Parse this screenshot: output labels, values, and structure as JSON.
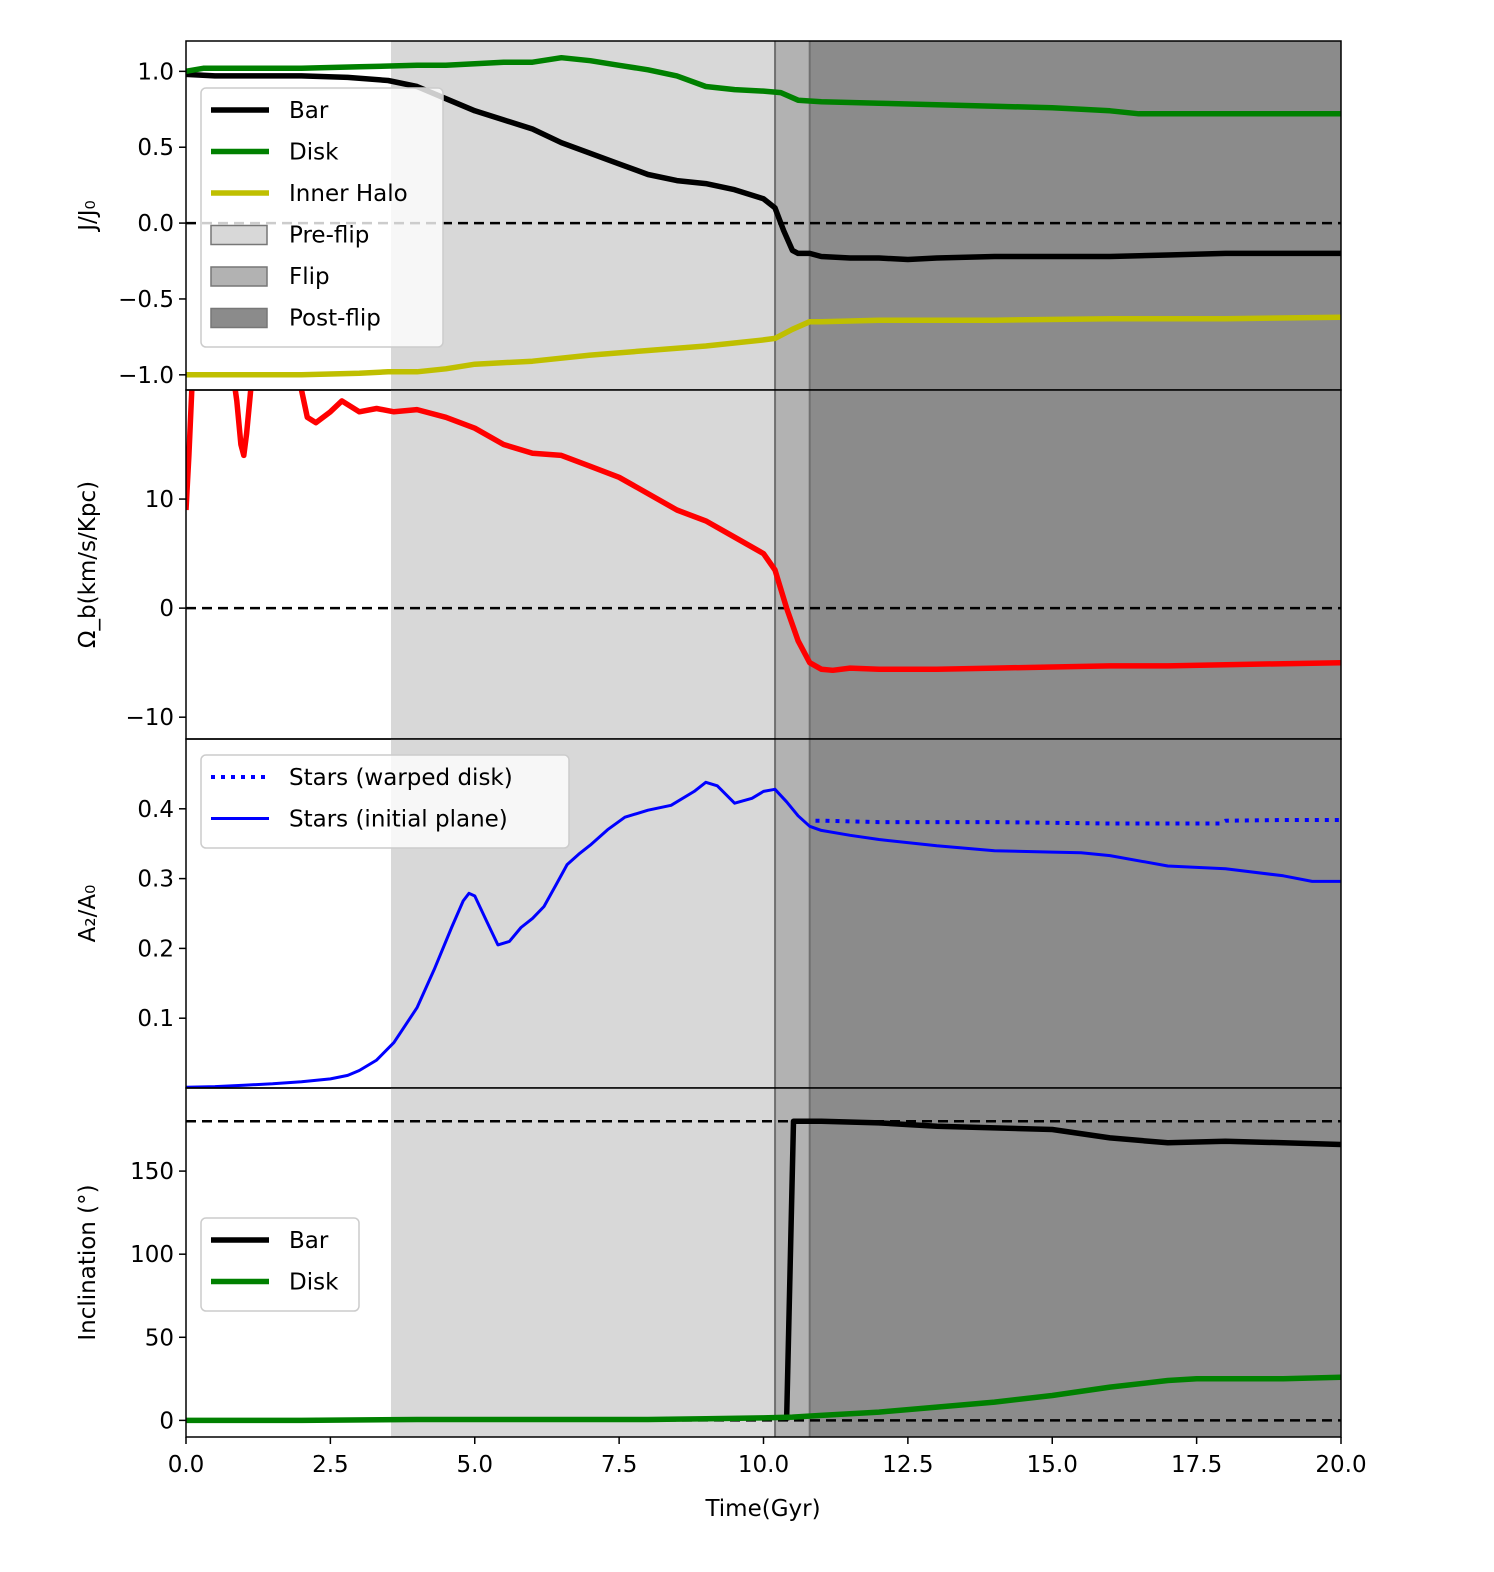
{
  "figure": {
    "xlabel": "Time(Gyr)",
    "x_ticks": [
      "0.0",
      "2.5",
      "5.0",
      "7.5",
      "10.0",
      "12.5",
      "15.0",
      "17.5",
      "20.0"
    ]
  },
  "phases": [
    {
      "name": "Pre-flip",
      "start": 3.55,
      "end": 10.2,
      "color": "#d8d8d8"
    },
    {
      "name": "Flip",
      "start": 10.2,
      "end": 10.8,
      "color": "#b2b2b2"
    },
    {
      "name": "Post-flip",
      "start": 10.8,
      "end": 20.0,
      "color": "#8b8b8b"
    }
  ],
  "chart_data": [
    {
      "type": "line",
      "ylabel": "J/J₀",
      "xlim": [
        0,
        20
      ],
      "ylim": [
        -1.1,
        1.2
      ],
      "y_ticks": [
        "1.0",
        "0.5",
        "0.0",
        "−0.5",
        "−1.0"
      ],
      "y_tick_values": [
        1.0,
        0.5,
        0.0,
        -0.5,
        -1.0
      ],
      "reference_lines": [
        0
      ],
      "legend": [
        "Bar",
        "Disk",
        "Inner Halo",
        "Pre-flip",
        "Flip",
        "Post-flip"
      ],
      "series": [
        {
          "name": "Bar",
          "color": "#000000",
          "x": [
            0,
            0.5,
            1,
            2,
            2.8,
            3.5,
            4,
            4.5,
            5,
            5.5,
            6,
            6.5,
            7,
            7.5,
            8,
            8.5,
            9,
            9.5,
            10,
            10.2,
            10.35,
            10.5,
            10.6,
            10.8,
            11,
            11.5,
            12,
            12.5,
            13,
            14,
            15,
            16,
            17,
            18,
            19,
            20
          ],
          "y": [
            0.98,
            0.97,
            0.97,
            0.97,
            0.96,
            0.94,
            0.9,
            0.82,
            0.74,
            0.68,
            0.62,
            0.53,
            0.46,
            0.39,
            0.32,
            0.28,
            0.26,
            0.22,
            0.16,
            0.1,
            -0.05,
            -0.18,
            -0.2,
            -0.2,
            -0.22,
            -0.23,
            -0.23,
            -0.24,
            -0.23,
            -0.22,
            -0.22,
            -0.22,
            -0.21,
            -0.2,
            -0.2,
            -0.2
          ]
        },
        {
          "name": "Disk",
          "color": "#008000",
          "x": [
            0,
            0.3,
            1,
            2,
            3,
            4,
            4.5,
            5,
            5.5,
            6,
            6.5,
            7,
            7.5,
            8,
            8.5,
            9,
            9.5,
            10,
            10.3,
            10.6,
            11,
            12,
            13,
            14,
            15,
            16,
            16.5,
            17,
            18,
            19,
            20
          ],
          "y": [
            1.0,
            1.02,
            1.02,
            1.02,
            1.03,
            1.04,
            1.04,
            1.05,
            1.06,
            1.06,
            1.09,
            1.07,
            1.04,
            1.01,
            0.97,
            0.9,
            0.88,
            0.87,
            0.86,
            0.81,
            0.8,
            0.79,
            0.78,
            0.77,
            0.76,
            0.74,
            0.72,
            0.72,
            0.72,
            0.72,
            0.72
          ]
        },
        {
          "name": "Inner Halo",
          "color": "#bfbf00",
          "x": [
            0,
            1,
            2,
            3,
            3.5,
            4,
            4.5,
            5,
            6,
            7,
            8,
            9,
            10,
            10.2,
            10.5,
            10.8,
            11,
            12,
            14,
            16,
            18,
            20
          ],
          "y": [
            -1.0,
            -1.0,
            -1.0,
            -0.99,
            -0.98,
            -0.98,
            -0.96,
            -0.93,
            -0.91,
            -0.87,
            -0.84,
            -0.81,
            -0.77,
            -0.76,
            -0.7,
            -0.65,
            -0.65,
            -0.64,
            -0.64,
            -0.63,
            -0.63,
            -0.62
          ]
        }
      ]
    },
    {
      "type": "line",
      "ylabel": "Ω_b(km/s/Kpc)",
      "xlim": [
        0,
        20
      ],
      "ylim": [
        -12,
        20
      ],
      "y_ticks": [
        "10",
        "0",
        "−10"
      ],
      "y_tick_values": [
        10,
        0,
        -10
      ],
      "reference_lines": [
        0
      ],
      "series": [
        {
          "name": "Bar",
          "color": "#ff0000",
          "x": [
            0,
            0.05,
            0.1,
            0.15,
            0.2,
            0.3,
            0.5,
            0.8,
            0.88,
            0.95,
            1.0,
            1.05,
            1.12,
            1.2,
            1.5,
            1.9,
            2.0,
            2.1,
            2.25,
            2.5,
            2.7,
            3.0,
            3.3,
            3.6,
            4.0,
            4.5,
            5.0,
            5.5,
            6.0,
            6.5,
            7.0,
            7.5,
            8.0,
            8.5,
            9.0,
            9.5,
            10.0,
            10.2,
            10.4,
            10.6,
            10.8,
            11.0,
            11.2,
            11.5,
            12,
            13,
            14,
            15,
            16,
            17,
            18,
            19,
            20
          ],
          "y": [
            9.0,
            14.0,
            20.0,
            22.0,
            22.0,
            22.0,
            22.0,
            22.0,
            19.0,
            15.0,
            14.0,
            16.0,
            20.0,
            22.0,
            22.0,
            22.0,
            20.0,
            17.5,
            17.0,
            18.0,
            19.0,
            18.0,
            18.3,
            18.0,
            18.2,
            17.5,
            16.5,
            15.0,
            14.2,
            14.0,
            13.0,
            12.0,
            10.5,
            9.0,
            8.0,
            6.5,
            5.0,
            3.5,
            0.0,
            -3.0,
            -5.0,
            -5.6,
            -5.7,
            -5.5,
            -5.6,
            -5.6,
            -5.5,
            -5.4,
            -5.3,
            -5.3,
            -5.2,
            -5.1,
            -5.0
          ]
        }
      ]
    },
    {
      "type": "line",
      "ylabel": "A₂/A₀",
      "xlim": [
        0,
        20
      ],
      "ylim": [
        0,
        0.5
      ],
      "y_ticks": [
        "0.4",
        "0.3",
        "0.2",
        "0.1"
      ],
      "y_tick_values": [
        0.4,
        0.3,
        0.2,
        0.1
      ],
      "legend": [
        "Stars (warped disk)",
        "Stars (initial plane)"
      ],
      "series": [
        {
          "name": "Stars (warped disk)",
          "color": "#0000ff",
          "dash": "dotted",
          "x": [
            10.9,
            11,
            12,
            13,
            14,
            15,
            16,
            17,
            17.9,
            18,
            19,
            20
          ],
          "y": [
            0.383,
            0.383,
            0.381,
            0.381,
            0.381,
            0.38,
            0.379,
            0.379,
            0.379,
            0.383,
            0.384,
            0.384
          ]
        },
        {
          "name": "Stars (initial plane)",
          "color": "#0000ff",
          "dash": "solid",
          "x": [
            0,
            0.5,
            1,
            1.5,
            2,
            2.5,
            2.8,
            3.0,
            3.3,
            3.6,
            4.0,
            4.3,
            4.6,
            4.8,
            4.9,
            5.0,
            5.2,
            5.4,
            5.6,
            5.8,
            6.0,
            6.2,
            6.4,
            6.6,
            6.8,
            7.0,
            7.3,
            7.6,
            8.0,
            8.4,
            8.8,
            9.0,
            9.2,
            9.5,
            9.8,
            10.0,
            10.2,
            10.4,
            10.6,
            10.8,
            11,
            11.5,
            12,
            13,
            14,
            15,
            15.5,
            16,
            17,
            18,
            19,
            19.5,
            20
          ],
          "y": [
            0.001,
            0.002,
            0.004,
            0.006,
            0.009,
            0.013,
            0.018,
            0.025,
            0.04,
            0.065,
            0.115,
            0.17,
            0.23,
            0.268,
            0.279,
            0.275,
            0.24,
            0.205,
            0.21,
            0.23,
            0.243,
            0.26,
            0.29,
            0.32,
            0.335,
            0.348,
            0.37,
            0.388,
            0.398,
            0.405,
            0.425,
            0.438,
            0.433,
            0.408,
            0.415,
            0.425,
            0.428,
            0.41,
            0.39,
            0.375,
            0.369,
            0.362,
            0.356,
            0.347,
            0.34,
            0.338,
            0.337,
            0.333,
            0.318,
            0.314,
            0.304,
            0.296,
            0.296
          ]
        }
      ]
    },
    {
      "type": "line",
      "ylabel": "Inclination (°)",
      "xlim": [
        0,
        20
      ],
      "ylim": [
        -10,
        200
      ],
      "y_ticks": [
        "150",
        "100",
        "50",
        "0"
      ],
      "y_tick_values": [
        150,
        100,
        50,
        0
      ],
      "reference_lines": [
        0,
        180
      ],
      "legend": [
        "Bar",
        "Disk"
      ],
      "series": [
        {
          "name": "Bar",
          "color": "#000000",
          "x": [
            10.4,
            10.52,
            10.6,
            11,
            12,
            13,
            14,
            15,
            16,
            17,
            18,
            19,
            20
          ],
          "y": [
            0,
            180,
            180,
            180,
            179,
            177,
            176,
            175,
            170,
            167,
            168,
            167,
            166
          ]
        },
        {
          "name": "Disk",
          "color": "#008000",
          "x": [
            0,
            2,
            4,
            6,
            8,
            9,
            10,
            10.5,
            11,
            11.5,
            12,
            13,
            14,
            15,
            16,
            17,
            17.5,
            18,
            19,
            20
          ],
          "y": [
            0,
            0,
            0.5,
            0.5,
            0.5,
            1,
            1.5,
            2,
            3,
            4,
            5,
            8,
            11,
            15,
            20,
            24,
            25,
            25,
            25,
            26
          ]
        }
      ]
    }
  ]
}
